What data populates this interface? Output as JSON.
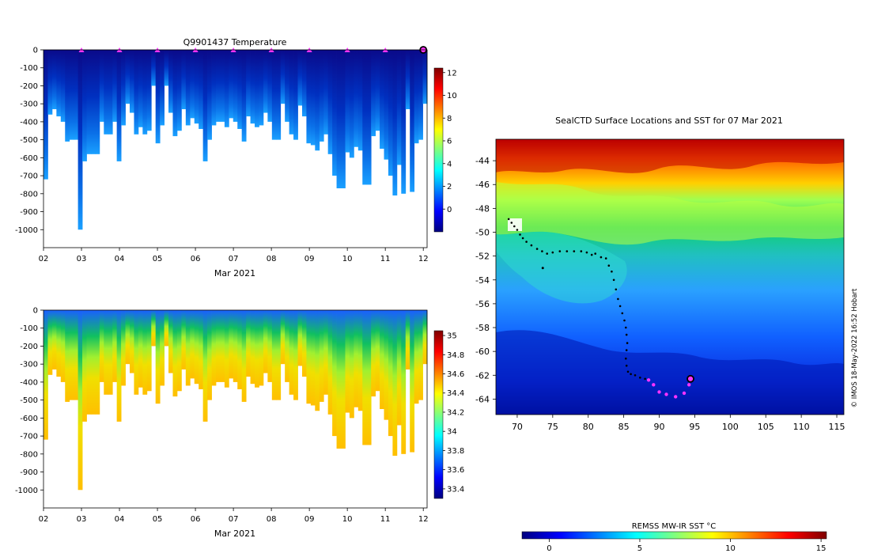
{
  "colors": {
    "jet": [
      "#00007f",
      "#0000ff",
      "#007fff",
      "#00ffff",
      "#7fff7f",
      "#ffff00",
      "#ff7f00",
      "#ff0000",
      "#7f0000"
    ],
    "profile_marker": "#ff33ff",
    "track": "#000000"
  },
  "chart_data": [
    {
      "id": "temperature",
      "type": "heatmap",
      "title": "Q9901437  Temperature",
      "xlabel": "Mar 2021",
      "x_ticks": [
        "02",
        "03",
        "04",
        "05",
        "06",
        "07",
        "08",
        "09",
        "10",
        "11",
        "12"
      ],
      "x_range": [
        2,
        12.1
      ],
      "y_ticks": [
        "0",
        "-100",
        "-200",
        "-300",
        "-400",
        "-500",
        "-600",
        "-700",
        "-800",
        "-900",
        "-1000"
      ],
      "y_range": [
        -1100,
        0
      ],
      "colorbar_ticks": [
        "12",
        "10",
        "8",
        "6",
        "4",
        "2",
        "0"
      ],
      "colorbar_range": [
        -2,
        12.4
      ],
      "profile_markers_day": [
        3,
        4,
        5,
        6,
        7,
        8,
        9,
        10,
        11
      ],
      "current_position_day": 12,
      "profile_depths_m": [
        -720,
        -360,
        -330,
        -370,
        -400,
        -510,
        -500,
        -500,
        -1000,
        -620,
        -580,
        -580,
        -580,
        -400,
        -470,
        -470,
        -400,
        -620,
        -420,
        -300,
        -350,
        -470,
        -430,
        -470,
        -450,
        -200,
        -520,
        -420,
        -200,
        -350,
        -480,
        -450,
        -330,
        -420,
        -380,
        -410,
        -440,
        -620,
        -500,
        -420,
        -400,
        -400,
        -430,
        -380,
        -400,
        -440,
        -510,
        -370,
        -410,
        -430,
        -420,
        -350,
        -400,
        -500,
        -500,
        -300,
        -400,
        -470,
        -500,
        -310,
        -370,
        -520,
        -530,
        -560,
        -510,
        -470,
        -580,
        -700,
        -770,
        -770,
        -570,
        -600,
        -540,
        -560,
        -750,
        -750,
        -480,
        -450,
        -550,
        -610,
        -700,
        -810,
        -640,
        -800,
        -330,
        -790,
        -520,
        -500,
        -300
      ]
    },
    {
      "id": "salinity",
      "type": "heatmap",
      "title": "",
      "xlabel": "Mar 2021",
      "x_ticks": [
        "02",
        "03",
        "04",
        "05",
        "06",
        "07",
        "08",
        "09",
        "10",
        "11",
        "12"
      ],
      "x_range": [
        2,
        12.1
      ],
      "y_ticks": [
        "0",
        "-100",
        "-200",
        "-300",
        "-400",
        "-500",
        "-600",
        "-700",
        "-800",
        "-900",
        "-1000"
      ],
      "y_range": [
        -1100,
        0
      ],
      "colorbar_ticks": [
        "35",
        "34.8",
        "34.6",
        "34.4",
        "34.2",
        "34",
        "33.8",
        "33.6",
        "33.4"
      ],
      "colorbar_range": [
        33.3,
        35.05
      ]
    },
    {
      "id": "sst_map",
      "type": "heatmap",
      "title": "SealCTD Surface Locations and SST for 07 Mar 2021",
      "x_ticks": [
        "70",
        "75",
        "80",
        "85",
        "90",
        "95",
        "100",
        "105",
        "110",
        "115"
      ],
      "x_range": [
        67,
        116
      ],
      "y_ticks": [
        "-44",
        "-46",
        "-48",
        "-50",
        "-52",
        "-54",
        "-56",
        "-58",
        "-60",
        "-62",
        "-64"
      ],
      "y_range": [
        -65.3,
        -42.2
      ],
      "colorbar_label": "REMSS MW-IR SST °C",
      "colorbar_ticks": [
        "0",
        "5",
        "10",
        "15"
      ],
      "colorbar_range": [
        -1.5,
        15.3
      ],
      "credit": "© IMOS 18-May-2022 16:52 Hobart",
      "track_lon": [
        68.8,
        69.2,
        69.6,
        70.0,
        70.4,
        70.8,
        71.3,
        72.0,
        72.8,
        73.5,
        74.2,
        75.0,
        76.0,
        77.0,
        78.0,
        79.0,
        79.8,
        80.5,
        81.0,
        81.8,
        82.5,
        82.9,
        83.3,
        83.6,
        83.9,
        84.2,
        84.5,
        84.8,
        85.1,
        85.3,
        85.4,
        85.5,
        85.4,
        85.3,
        85.4,
        85.6,
        86.0,
        86.6,
        87.3,
        88.0
      ],
      "track_lat": [
        -48.9,
        -49.2,
        -49.5,
        -49.8,
        -50.2,
        -50.5,
        -50.8,
        -51.1,
        -51.4,
        -51.6,
        -51.8,
        -51.7,
        -51.6,
        -51.6,
        -51.6,
        -51.6,
        -51.7,
        -51.9,
        -51.8,
        -52.1,
        -52.2,
        -52.8,
        -53.3,
        -54.0,
        -54.8,
        -55.6,
        -56.2,
        -56.8,
        -57.4,
        -58.0,
        -58.6,
        -59.3,
        -59.9,
        -60.6,
        -61.2,
        -61.7,
        -61.9,
        -62.0,
        -62.2,
        -62.3
      ],
      "profile_lon": [
        88.5,
        89.2,
        90.0,
        91.0,
        92.3,
        93.5,
        94.2
      ],
      "profile_lat": [
        -62.4,
        -62.8,
        -63.4,
        -63.6,
        -63.8,
        -63.5,
        -62.8
      ],
      "current_lon": 94.4,
      "current_lat": -62.3,
      "isolated_lon": 73.6,
      "isolated_lat": -53.0
    }
  ]
}
